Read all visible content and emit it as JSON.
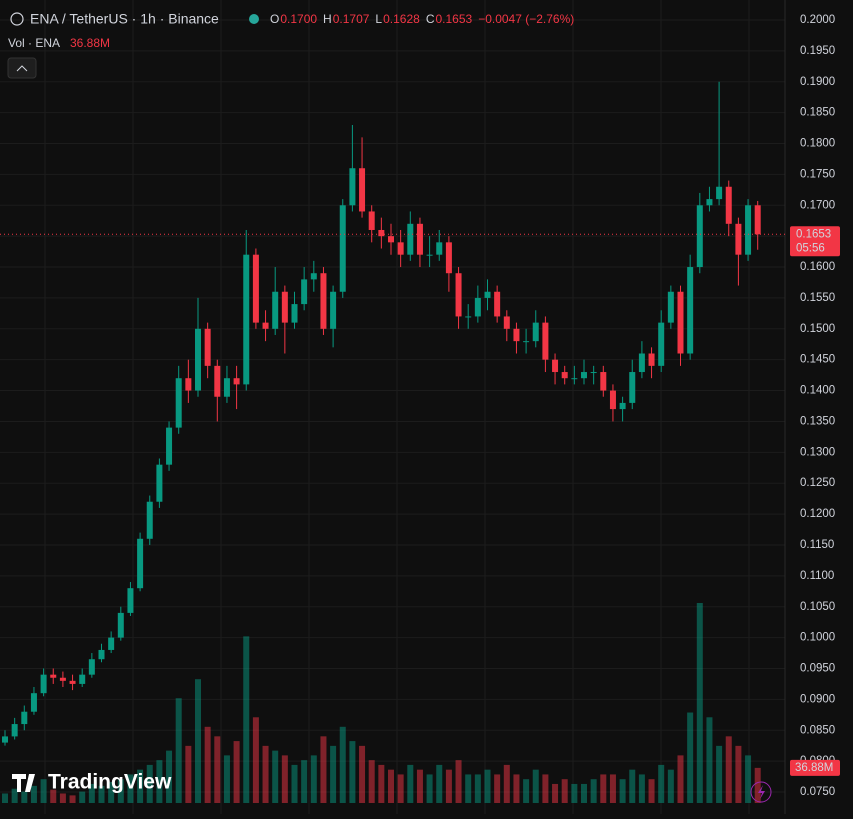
{
  "chart_data": {
    "type": "candlestick",
    "title": "ENA / TetherUS · 1h · Binance",
    "legend": [
      {
        "key": "O",
        "text": "0.1700"
      },
      {
        "key": "H",
        "text": "0.1707"
      },
      {
        "key": "L",
        "text": "0.1628"
      },
      {
        "key": "C",
        "text": "0.1653"
      }
    ],
    "change": "−0.0047 (−2.76%)",
    "volume_title": "Vol · ENA",
    "volume_label": "36.88M",
    "last_price": {
      "value": 0.1653,
      "label": "0.1653",
      "countdown": "05:56"
    },
    "watermark": "TradingView",
    "up_color": "#089981",
    "down_color": "#f23645",
    "ylim": [
      0.075,
      0.2
    ],
    "yticks": [
      {
        "value": 0.075,
        "label": "0.0750"
      },
      {
        "value": 0.08,
        "label": "0.0800"
      },
      {
        "value": 0.085,
        "label": "0.0850"
      },
      {
        "value": 0.09,
        "label": "0.0900"
      },
      {
        "value": 0.095,
        "label": "0.0950"
      },
      {
        "value": 0.1,
        "label": "0.1000"
      },
      {
        "value": 0.105,
        "label": "0.1050"
      },
      {
        "value": 0.11,
        "label": "0.1100"
      },
      {
        "value": 0.115,
        "label": "0.1150"
      },
      {
        "value": 0.12,
        "label": "0.1200"
      },
      {
        "value": 0.125,
        "label": "0.1250"
      },
      {
        "value": 0.13,
        "label": "0.1300"
      },
      {
        "value": 0.135,
        "label": "0.1350"
      },
      {
        "value": 0.14,
        "label": "0.1400"
      },
      {
        "value": 0.145,
        "label": "0.1450"
      },
      {
        "value": 0.15,
        "label": "0.1500"
      },
      {
        "value": 0.155,
        "label": "0.1550"
      },
      {
        "value": 0.16,
        "label": "0.1600"
      },
      {
        "value": 0.165,
        "label": "0.1650"
      },
      {
        "value": 0.17,
        "label": "0.1700"
      },
      {
        "value": 0.175,
        "label": "0.1750"
      },
      {
        "value": 0.18,
        "label": "0.1800"
      },
      {
        "value": 0.185,
        "label": "0.1850"
      },
      {
        "value": 0.19,
        "label": "0.1900"
      },
      {
        "value": 0.195,
        "label": "0.1950"
      },
      {
        "value": 0.2,
        "label": "0.2000"
      }
    ],
    "grid": true,
    "open": [
      0.083,
      0.084,
      0.086,
      0.088,
      0.091,
      0.094,
      0.0935,
      0.093,
      0.0925,
      0.094,
      0.0965,
      0.098,
      0.1,
      0.104,
      0.108,
      0.116,
      0.122,
      0.128,
      0.134,
      0.142,
      0.14,
      0.15,
      0.144,
      0.139,
      0.142,
      0.141,
      0.162,
      0.151,
      0.15,
      0.156,
      0.151,
      0.154,
      0.158,
      0.159,
      0.15,
      0.156,
      0.17,
      0.176,
      0.169,
      0.166,
      0.165,
      0.164,
      0.162,
      0.167,
      0.162,
      0.162,
      0.164,
      0.159,
      0.152,
      0.152,
      0.155,
      0.156,
      0.152,
      0.15,
      0.148,
      0.148,
      0.151,
      0.145,
      0.143,
      0.142,
      0.142,
      0.143,
      0.143,
      0.14,
      0.137,
      0.138,
      0.143,
      0.146,
      0.144,
      0.151,
      0.156,
      0.146,
      0.16,
      0.17,
      0.171,
      0.173,
      0.167,
      0.162,
      0.17
    ],
    "high": [
      0.085,
      0.087,
      0.089,
      0.092,
      0.095,
      0.095,
      0.0945,
      0.094,
      0.095,
      0.0975,
      0.099,
      0.101,
      0.105,
      0.109,
      0.117,
      0.123,
      0.129,
      0.135,
      0.144,
      0.145,
      0.155,
      0.151,
      0.145,
      0.144,
      0.144,
      0.166,
      0.163,
      0.153,
      0.16,
      0.157,
      0.156,
      0.16,
      0.161,
      0.16,
      0.157,
      0.171,
      0.183,
      0.181,
      0.17,
      0.168,
      0.167,
      0.166,
      0.169,
      0.168,
      0.165,
      0.166,
      0.165,
      0.16,
      0.154,
      0.157,
      0.158,
      0.157,
      0.153,
      0.151,
      0.15,
      0.153,
      0.152,
      0.146,
      0.144,
      0.144,
      0.145,
      0.144,
      0.144,
      0.141,
      0.139,
      0.145,
      0.148,
      0.147,
      0.153,
      0.157,
      0.157,
      0.162,
      0.172,
      0.173,
      0.19,
      0.174,
      0.168,
      0.171,
      0.1707
    ],
    "low": [
      0.0825,
      0.0835,
      0.085,
      0.0875,
      0.0905,
      0.0925,
      0.092,
      0.0915,
      0.092,
      0.0935,
      0.096,
      0.0975,
      0.0995,
      0.1035,
      0.1075,
      0.115,
      0.121,
      0.127,
      0.133,
      0.138,
      0.139,
      0.142,
      0.135,
      0.138,
      0.137,
      0.14,
      0.15,
      0.148,
      0.149,
      0.146,
      0.15,
      0.153,
      0.156,
      0.149,
      0.147,
      0.155,
      0.169,
      0.168,
      0.164,
      0.163,
      0.162,
      0.16,
      0.161,
      0.16,
      0.16,
      0.161,
      0.156,
      0.15,
      0.15,
      0.151,
      0.153,
      0.151,
      0.148,
      0.146,
      0.146,
      0.147,
      0.143,
      0.141,
      0.141,
      0.141,
      0.141,
      0.141,
      0.139,
      0.135,
      0.135,
      0.137,
      0.142,
      0.142,
      0.143,
      0.15,
      0.144,
      0.145,
      0.159,
      0.169,
      0.17,
      0.165,
      0.157,
      0.161,
      0.1628
    ],
    "close": [
      0.084,
      0.086,
      0.088,
      0.091,
      0.094,
      0.0935,
      0.093,
      0.0925,
      0.094,
      0.0965,
      0.098,
      0.1,
      0.104,
      0.108,
      0.116,
      0.122,
      0.128,
      0.134,
      0.142,
      0.14,
      0.15,
      0.144,
      0.139,
      0.142,
      0.141,
      0.162,
      0.151,
      0.15,
      0.156,
      0.151,
      0.154,
      0.158,
      0.159,
      0.15,
      0.156,
      0.17,
      0.176,
      0.169,
      0.166,
      0.165,
      0.164,
      0.162,
      0.167,
      0.162,
      0.162,
      0.164,
      0.159,
      0.152,
      0.152,
      0.155,
      0.156,
      0.152,
      0.15,
      0.148,
      0.148,
      0.151,
      0.145,
      0.143,
      0.142,
      0.142,
      0.143,
      0.143,
      0.14,
      0.137,
      0.138,
      0.143,
      0.146,
      0.144,
      0.151,
      0.156,
      0.146,
      0.16,
      0.17,
      0.171,
      0.173,
      0.167,
      0.162,
      0.17,
      0.1653
    ],
    "volume": [
      10,
      15,
      12,
      18,
      25,
      14,
      10,
      8,
      12,
      20,
      18,
      22,
      25,
      30,
      35,
      40,
      45,
      55,
      110,
      60,
      130,
      80,
      70,
      50,
      65,
      175,
      90,
      60,
      55,
      50,
      40,
      45,
      50,
      70,
      60,
      80,
      65,
      60,
      45,
      40,
      35,
      30,
      40,
      35,
      30,
      40,
      35,
      45,
      30,
      30,
      35,
      30,
      40,
      30,
      25,
      35,
      30,
      20,
      25,
      20,
      20,
      25,
      30,
      30,
      25,
      35,
      30,
      25,
      40,
      35,
      50,
      95,
      210,
      90,
      60,
      70,
      60,
      50,
      36.88
    ]
  }
}
